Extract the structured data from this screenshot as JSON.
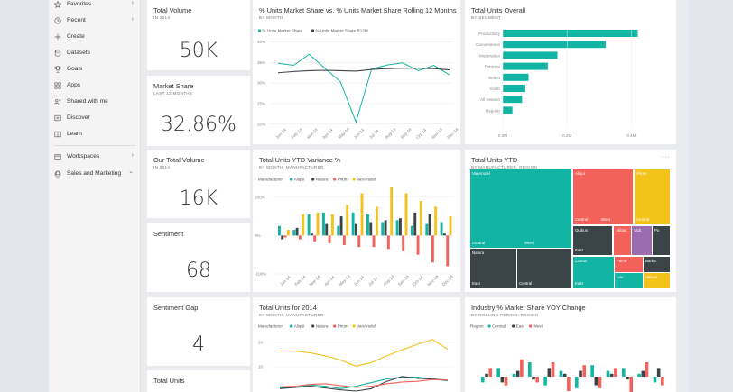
{
  "colors": {
    "teal": "#12b5a3",
    "dark": "#3b4447",
    "red": "#f2625b",
    "yellow": "#f3c21b",
    "purple": "#9b6db0",
    "gray": "#8a8a8a"
  },
  "sidebar": {
    "items": [
      {
        "label": "Favorites",
        "icon": "star-icon",
        "chevron": "›"
      },
      {
        "label": "Recent",
        "icon": "clock-icon",
        "chevron": "›"
      },
      {
        "label": "Create",
        "icon": "plus-icon"
      },
      {
        "label": "Datasets",
        "icon": "database-icon"
      },
      {
        "label": "Goals",
        "icon": "trophy-icon"
      },
      {
        "label": "Apps",
        "icon": "apps-icon"
      },
      {
        "label": "Shared with me",
        "icon": "share-icon"
      },
      {
        "label": "Discover",
        "icon": "discover-icon"
      },
      {
        "label": "Learn",
        "icon": "book-icon"
      }
    ],
    "workspaces": {
      "label": "Workspaces",
      "chevron": "›"
    },
    "sales": {
      "label": "Sales and Marketing",
      "chevron": "⌄"
    }
  },
  "kpis": {
    "total_volume": {
      "title": "Total Volume",
      "sub": "IN 2014",
      "value": "50K"
    },
    "market_share": {
      "title": "Market Share",
      "sub": "LAST 12 MONTHS",
      "value": "32.86%"
    },
    "our_total_volume": {
      "title": "Our Total Volume",
      "sub": "IN 2014",
      "value": "16K"
    },
    "sentiment": {
      "title": "Sentiment",
      "value": "68"
    },
    "sentiment_gap": {
      "title": "Sentiment Gap",
      "value": "4"
    },
    "total_units": {
      "title": "Total Units"
    }
  },
  "tiles": {
    "share_line": {
      "title": "% Units Market Share vs. % Units Market Share Rolling 12 Months",
      "sub": "BY MONTH"
    },
    "segment_bar": {
      "title": "Total Units Overall",
      "sub": "BY SEGMENT"
    },
    "variance": {
      "title": "Total Units YTD Variance %",
      "sub": "BY MONTH, MANUFACTURER"
    },
    "treemap": {
      "title": "Total Units YTD",
      "sub": "BY MANUFACTURER, REGION",
      "menu": "···"
    },
    "units2014": {
      "title": "Total Units for 2014",
      "sub": "BY MONTH, MANUFACTURER"
    },
    "yoy": {
      "title": "Industry % Market Share YOY Change",
      "sub": "BY ROLLING PERIOD, REGION"
    }
  },
  "chart_data": [
    {
      "id": "share_line",
      "type": "line",
      "title": "% Units Market Share vs. % Units Market Share Rolling 12 Months",
      "legend": [
        "% Units Market Share",
        "% Units Market Share R12M"
      ],
      "categories": [
        "Jan-14",
        "Feb-14",
        "Mar-14",
        "Apr-14",
        "May-14",
        "Jun-14",
        "Jul-14",
        "Aug-14",
        "Sep-14",
        "Oct-14",
        "Nov-14",
        "Dec-14"
      ],
      "series": [
        {
          "name": "% Units Market Share",
          "values": [
            34.8,
            34.3,
            37.0,
            33.6,
            30.3,
            20.5,
            33.4,
            34.4,
            34.9,
            33.0,
            34.3,
            32.0
          ]
        },
        {
          "name": "% Units Market Share R12M",
          "values": [
            32.5,
            32.8,
            33.0,
            33.1,
            33.0,
            32.9,
            33.3,
            33.5,
            33.6,
            33.6,
            33.5,
            33.2
          ]
        }
      ],
      "yticks": [
        "40%",
        "35%",
        "30%",
        "25%",
        "20%"
      ],
      "ylim": [
        19.5,
        41
      ]
    },
    {
      "id": "segment_bar",
      "type": "bar",
      "title": "Total Units Overall",
      "categories": [
        "Productivity",
        "Convenience",
        "Moderation",
        "Extreme",
        "Select",
        "Youth",
        "All Season",
        "Regular"
      ],
      "values": [
        0.42,
        0.32,
        0.17,
        0.14,
        0.08,
        0.07,
        0.06,
        0.03
      ],
      "xticks": [
        "0.0M",
        "0.2M",
        "0.4M"
      ],
      "xlim": [
        0,
        0.5
      ]
    },
    {
      "id": "variance",
      "type": "bar",
      "title": "Total Units YTD Variance %",
      "legend_title": "Manufacturer",
      "categories": [
        "Jan-14",
        "Feb-14",
        "Mar-14",
        "Apr-14",
        "May-14",
        "Jun-14",
        "Jul-14",
        "Aug-14",
        "Sep-14",
        "Oct-14",
        "Nov-14",
        "Dec-14"
      ],
      "series": [
        {
          "name": "Aliqui",
          "values": [
            25,
            15,
            55,
            60,
            25,
            60,
            55,
            35,
            40,
            25,
            30,
            35
          ]
        },
        {
          "name": "Natura",
          "values": [
            -10,
            20,
            5,
            30,
            50,
            30,
            35,
            40,
            45,
            60,
            55,
            5
          ]
        },
        {
          "name": "Pirum",
          "values": [
            -5,
            -10,
            -15,
            -20,
            -25,
            -30,
            -30,
            -35,
            -40,
            -50,
            -70,
            -80
          ]
        },
        {
          "name": "VanArsdel",
          "values": [
            15,
            55,
            60,
            55,
            80,
            110,
            75,
            125,
            110,
            90,
            75,
            50
          ]
        }
      ],
      "yticks": [
        "100%",
        "0%",
        "-100%"
      ],
      "ylim": [
        -100,
        130
      ]
    },
    {
      "id": "treemap",
      "type": "heatmap",
      "title": "Total Units YTD",
      "cells": [
        {
          "label": "VanArsdel",
          "region": "East",
          "color": "teal"
        },
        {
          "label": "",
          "region": "Central",
          "color": "teal"
        },
        {
          "label": "",
          "region": "West",
          "color": "teal"
        },
        {
          "label": "Natura",
          "region": "East",
          "color": "dark"
        },
        {
          "label": "",
          "region": "Central",
          "color": "dark"
        },
        {
          "label": "",
          "region": "West",
          "color": "dark"
        },
        {
          "label": "Aliqui",
          "region": "Central",
          "color": "red"
        },
        {
          "label": "",
          "region": "West",
          "color": "red"
        },
        {
          "label": "Pirum",
          "region": "East",
          "color": "yellow"
        },
        {
          "label": "",
          "region": "Central",
          "color": "yellow"
        },
        {
          "label": "Quibus",
          "region": "East",
          "color": "dark"
        },
        {
          "label": "Abbas",
          "region": "",
          "color": "red"
        },
        {
          "label": "Victi",
          "region": "",
          "color": "purple"
        },
        {
          "label": "Po",
          "region": "",
          "color": "dark"
        },
        {
          "label": "Currus",
          "region": "East",
          "color": "teal"
        },
        {
          "label": "Fama",
          "region": "",
          "color": "red"
        },
        {
          "label": "Barba",
          "region": "",
          "color": "dark"
        },
        {
          "label": "Leo",
          "region": "",
          "color": "teal"
        },
        {
          "label": "Salvus",
          "region": "",
          "color": "yellow"
        }
      ]
    },
    {
      "id": "units2014",
      "type": "line",
      "title": "Total Units for 2014",
      "legend_title": "Manufacturer",
      "categories": [
        "Jan-14",
        "Feb-14",
        "Mar-14",
        "Apr-14",
        "May-14",
        "Jun-14",
        "Jul-14",
        "Aug-14",
        "Sep-14",
        "Oct-14",
        "Nov-14",
        "Dec-14"
      ],
      "series": [
        {
          "name": "Aliqui",
          "values": [
            12.5,
            12.6,
            13.0,
            12.8,
            12.4,
            12.8,
            13.4,
            14.0,
            14.3,
            14.3,
            14.0,
            13.7
          ]
        },
        {
          "name": "Natura",
          "values": [
            12.4,
            12.6,
            12.8,
            12.5,
            12.2,
            12.0,
            12.4,
            13.6,
            14.4,
            14.1,
            14.0,
            13.8
          ]
        },
        {
          "name": "Pirum",
          "values": [
            12.7,
            12.8,
            13.1,
            13.2,
            12.9,
            12.6,
            12.8,
            13.2,
            13.5,
            13.6,
            13.9,
            13.8
          ]
        },
        {
          "name": "VanArsdel",
          "values": [
            18.6,
            18.6,
            18.3,
            17.8,
            17.1,
            16.1,
            16.7,
            17.8,
            18.8,
            19.7,
            20.5,
            18.9
          ]
        }
      ],
      "yticks": [
        "20",
        "16"
      ],
      "ylim": [
        12,
        21.5
      ]
    },
    {
      "id": "yoy",
      "type": "bar",
      "title": "Industry % Market Share YOY Change",
      "legend_title": "Region",
      "series": [
        {
          "name": "Central",
          "values": [
            -2,
            3,
            1,
            5,
            -3,
            2,
            -4,
            4,
            2,
            3,
            1,
            -2
          ]
        },
        {
          "name": "East",
          "values": [
            1,
            -2,
            2,
            -1,
            3,
            1,
            2,
            -3,
            1,
            -1,
            2,
            3
          ]
        },
        {
          "name": "West",
          "values": [
            3,
            -3,
            6,
            -2,
            5,
            -5,
            4,
            -4,
            3,
            -6,
            5,
            -3
          ]
        }
      ]
    }
  ]
}
